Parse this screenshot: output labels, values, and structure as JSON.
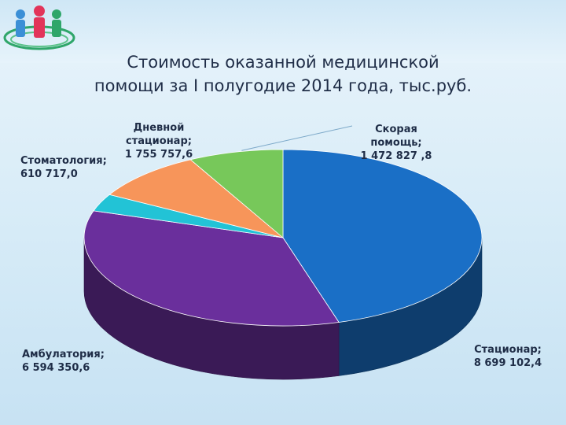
{
  "title_lines": [
    "Стоимость оказанной медицинской",
    "помощи за I полугодие 2014 года, тыс.руб."
  ],
  "chart_data": {
    "type": "pie",
    "title": "Стоимость оказанной медицинской помощи за I полугодие 2014 года, тыс.руб.",
    "three_d": true,
    "legend": "none",
    "start_angle_deg": 0,
    "slices": [
      {
        "name": "Стационар",
        "value": 8699102.4,
        "label_lines": [
          "Стационар;",
          "8 699 102,4"
        ],
        "color": "#1a6fc6"
      },
      {
        "name": "Амбулатория",
        "value": 6594350.6,
        "label_lines": [
          "Амбулатория;",
          "6 594 350,6"
        ],
        "color": "#6a2f9c"
      },
      {
        "name": "Стоматология",
        "value": 610717.0,
        "label_lines": [
          "Стоматология;",
          "610 717,0"
        ],
        "color": "#22c3d6"
      },
      {
        "name": "Дневной стационар",
        "value": 1755757.6,
        "label_lines": [
          "Дневной",
          "стационар;",
          "1 755 757,6"
        ],
        "color": "#f7955a"
      },
      {
        "name": "Скорая помощь",
        "value": 1472827.8,
        "label_lines": [
          "Скорая",
          "помощь;",
          "1 472 827 ,8"
        ],
        "color": "#77c85a"
      }
    ]
  }
}
